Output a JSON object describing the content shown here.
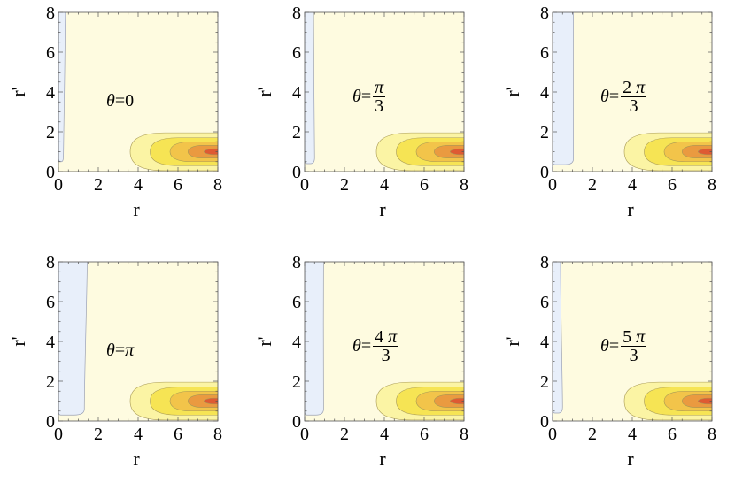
{
  "chart_data": [
    {
      "type": "contour",
      "panel_label": {
        "prefix": "θ=",
        "whole": "0",
        "num": "",
        "den": ""
      },
      "xlabel": "r",
      "ylabel": "r'",
      "xlim": [
        0,
        8
      ],
      "ylim": [
        0,
        8
      ],
      "xticks": [
        "0",
        "2",
        "4",
        "6",
        "8"
      ],
      "yticks": [
        "0",
        "2",
        "4",
        "6",
        "8"
      ],
      "negative_region": {
        "width_top": 0.35,
        "width_min": 0.25,
        "bottom": 0.5
      }
    },
    {
      "type": "contour",
      "panel_label": {
        "prefix": "θ=",
        "whole": "",
        "num": "π",
        "den": "3"
      },
      "xlabel": "r",
      "ylabel": "r'",
      "xlim": [
        0,
        8
      ],
      "ylim": [
        0,
        8
      ],
      "xticks": [
        "0",
        "2",
        "4",
        "6",
        "8"
      ],
      "yticks": [
        "0",
        "2",
        "4",
        "6",
        "8"
      ],
      "negative_region": {
        "width_top": 0.45,
        "width_min": 0.5,
        "bottom": 0.4
      }
    },
    {
      "type": "contour",
      "panel_label": {
        "prefix": "θ=",
        "whole": "",
        "num": "2 π",
        "den": "3"
      },
      "xlabel": "r",
      "ylabel": "r'",
      "xlim": [
        0,
        8
      ],
      "ylim": [
        0,
        8
      ],
      "xticks": [
        "0",
        "2",
        "4",
        "6",
        "8"
      ],
      "yticks": [
        "0",
        "2",
        "4",
        "6",
        "8"
      ],
      "negative_region": {
        "width_top": 1.05,
        "width_min": 1.05,
        "bottom": 0.35
      }
    },
    {
      "type": "contour",
      "panel_label": {
        "prefix": "θ=",
        "whole": "π",
        "num": "",
        "den": ""
      },
      "xlabel": "r",
      "ylabel": "r'",
      "xlim": [
        0,
        8
      ],
      "ylim": [
        0,
        8
      ],
      "xticks": [
        "0",
        "2",
        "4",
        "6",
        "8"
      ],
      "yticks": [
        "0",
        "2",
        "4",
        "6",
        "8"
      ],
      "negative_region": {
        "width_top": 1.45,
        "width_min": 1.3,
        "bottom": 0.3
      }
    },
    {
      "type": "contour",
      "panel_label": {
        "prefix": "θ=",
        "whole": "",
        "num": "4 π",
        "den": "3"
      },
      "xlabel": "r",
      "ylabel": "r'",
      "xlim": [
        0,
        8
      ],
      "ylim": [
        0,
        8
      ],
      "xticks": [
        "0",
        "2",
        "4",
        "6",
        "8"
      ],
      "yticks": [
        "0",
        "2",
        "4",
        "6",
        "8"
      ],
      "negative_region": {
        "width_top": 0.95,
        "width_min": 0.95,
        "bottom": 0.3
      }
    },
    {
      "type": "contour",
      "panel_label": {
        "prefix": "θ=",
        "whole": "",
        "num": "5 π",
        "den": "3"
      },
      "xlabel": "r",
      "ylabel": "r'",
      "xlim": [
        0,
        8
      ],
      "ylim": [
        0,
        8
      ],
      "xticks": [
        "0",
        "2",
        "4",
        "6",
        "8"
      ],
      "yticks": [
        "0",
        "2",
        "4",
        "6",
        "8"
      ],
      "negative_region": {
        "width_top": 0.4,
        "width_min": 0.5,
        "bottom": 0.4
      }
    }
  ],
  "contour_colors": {
    "background": "#fefbe0",
    "negative": "#e8effa",
    "levels": [
      "#fbf4a4",
      "#f6e454",
      "#f2c44a",
      "#ea9a40",
      "#de5a33"
    ]
  },
  "hotspot": {
    "r": 8.0,
    "rp": 1.0,
    "levels": [
      {
        "r0": 3.6,
        "rp_half": 0.95
      },
      {
        "r0": 4.6,
        "rp_half": 0.7
      },
      {
        "r0": 5.6,
        "rp_half": 0.5
      },
      {
        "r0": 6.5,
        "rp_half": 0.32
      },
      {
        "r0": 7.3,
        "rp_half": 0.15
      }
    ]
  }
}
